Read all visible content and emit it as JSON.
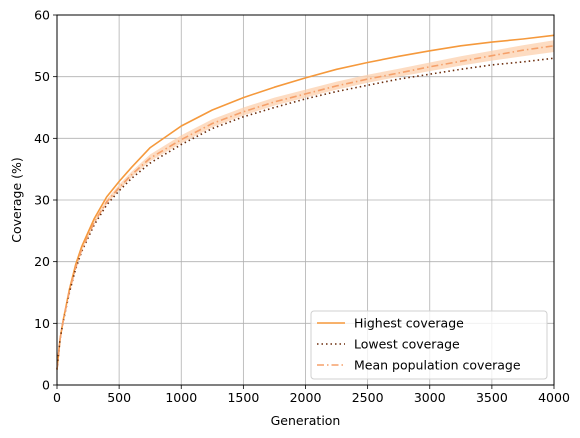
{
  "chart_data": {
    "type": "line",
    "xlabel": "Generation",
    "ylabel": "Coverage (%)",
    "xlim": [
      0,
      4000
    ],
    "ylim": [
      0,
      60
    ],
    "xticks": [
      0,
      500,
      1000,
      1500,
      2000,
      2500,
      3000,
      3500,
      4000
    ],
    "yticks": [
      0,
      10,
      20,
      30,
      40,
      50,
      60
    ],
    "grid": true,
    "legend_position": "lower-right",
    "x": [
      0,
      25,
      50,
      100,
      150,
      200,
      300,
      400,
      500,
      600,
      750,
      1000,
      1250,
      1500,
      1750,
      2000,
      2250,
      2500,
      2750,
      3000,
      3250,
      3500,
      3750,
      4000
    ],
    "series": [
      {
        "name": "Highest coverage",
        "style": "solid",
        "color": "#f5993c",
        "values": [
          2.5,
          7.5,
          10.5,
          15.5,
          19.5,
          22.5,
          27.0,
          30.5,
          33.0,
          35.3,
          38.5,
          42.0,
          44.6,
          46.6,
          48.3,
          49.8,
          51.2,
          52.3,
          53.3,
          54.2,
          55.0,
          55.6,
          56.1,
          56.7
        ]
      },
      {
        "name": "Lowest coverage",
        "style": "dotted",
        "color": "#6b2c0c",
        "values": [
          2.5,
          7.5,
          10.3,
          15.0,
          18.8,
          21.7,
          26.0,
          29.2,
          31.5,
          33.5,
          36.0,
          39.0,
          41.6,
          43.5,
          45.0,
          46.4,
          47.6,
          48.6,
          49.6,
          50.4,
          51.2,
          51.9,
          52.4,
          53.0
        ]
      },
      {
        "name": "Mean population coverage",
        "style": "dashdot",
        "color": "#f5a06a",
        "values": [
          2.5,
          7.5,
          10.4,
          15.2,
          19.0,
          22.0,
          26.4,
          29.7,
          32.0,
          34.1,
          36.8,
          39.8,
          42.4,
          44.3,
          45.9,
          47.2,
          48.5,
          49.6,
          50.6,
          51.6,
          52.5,
          53.4,
          54.3,
          55.0
        ]
      }
    ],
    "band": {
      "color": "#fcd0ae",
      "lower": [
        2.5,
        7.5,
        10.3,
        15.0,
        18.8,
        21.7,
        26.1,
        29.3,
        31.6,
        33.7,
        36.3,
        39.2,
        41.8,
        43.7,
        45.3,
        46.6,
        47.9,
        49.0,
        50.0,
        50.9,
        51.8,
        52.6,
        53.3,
        54.0
      ],
      "upper": [
        2.5,
        7.5,
        10.5,
        15.4,
        19.3,
        22.3,
        26.8,
        30.1,
        32.5,
        34.6,
        37.4,
        40.5,
        43.1,
        45.0,
        46.6,
        47.9,
        49.2,
        50.3,
        51.3,
        52.3,
        53.3,
        54.2,
        55.1,
        55.9
      ]
    }
  }
}
